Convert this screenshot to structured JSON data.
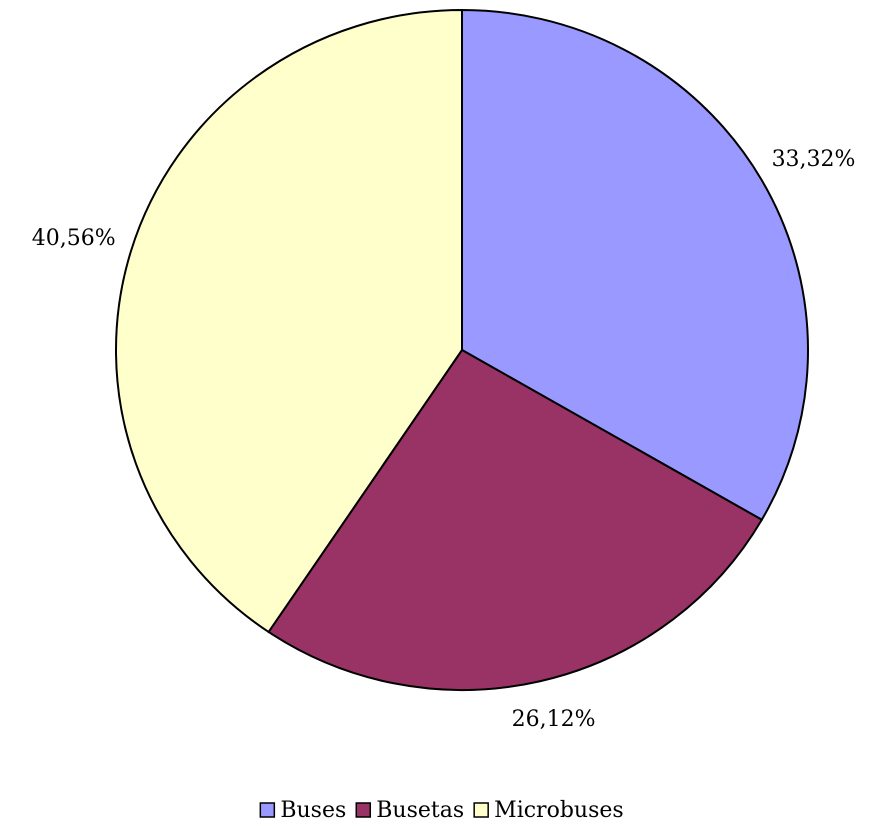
{
  "chart_data": {
    "type": "pie",
    "categories": [
      "Buses",
      "Busetas",
      "Microbuses"
    ],
    "values": [
      33.32,
      26.12,
      40.56
    ],
    "value_labels": [
      "33,32%",
      "26,12%",
      "40,56%"
    ],
    "colors": [
      "#9999ff",
      "#993366",
      "#ffffcc"
    ]
  }
}
